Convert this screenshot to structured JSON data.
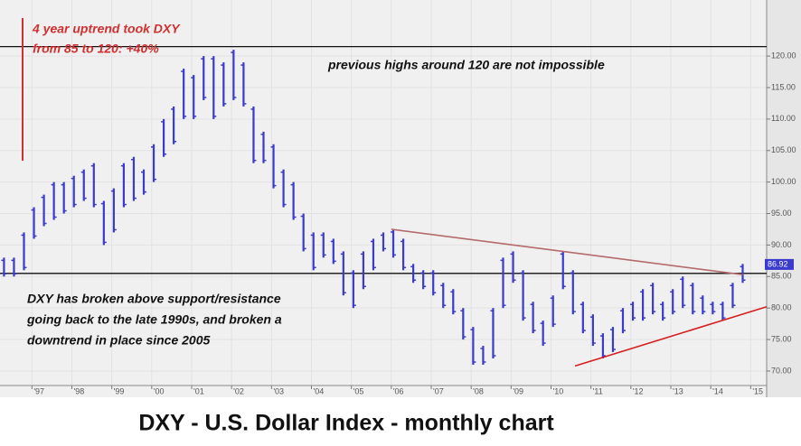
{
  "chart_data": {
    "type": "ohlc",
    "title": "DXY - U.S. Dollar Index - monthly chart",
    "color": "#3a3acc",
    "x": [
      1996.3,
      1996.55,
      1996.8,
      1997.05,
      1997.3,
      1997.55,
      1997.8,
      1998.05,
      1998.3,
      1998.55,
      1998.8,
      1999.05,
      1999.3,
      1999.55,
      1999.8,
      2000.05,
      2000.3,
      2000.55,
      2000.8,
      2001.05,
      2001.3,
      2001.55,
      2001.8,
      2002.05,
      2002.3,
      2002.55,
      2002.8,
      2003.05,
      2003.3,
      2003.55,
      2003.8,
      2004.05,
      2004.3,
      2004.55,
      2004.8,
      2005.05,
      2005.3,
      2005.55,
      2005.8,
      2006.05,
      2006.3,
      2006.55,
      2006.8,
      2007.05,
      2007.3,
      2007.55,
      2007.8,
      2008.05,
      2008.3,
      2008.55,
      2008.8,
      2009.05,
      2009.3,
      2009.55,
      2009.8,
      2010.05,
      2010.3,
      2010.55,
      2010.8,
      2011.05,
      2011.3,
      2011.55,
      2011.8,
      2012.05,
      2012.3,
      2012.55,
      2012.8,
      2013.05,
      2013.3,
      2013.55,
      2013.8,
      2014.05,
      2014.3,
      2014.55,
      2014.8
    ],
    "high": [
      88,
      88,
      92,
      96,
      98,
      100,
      100,
      101,
      102,
      103,
      97,
      99,
      103,
      104,
      102,
      106,
      110,
      112,
      118,
      117,
      120,
      120,
      119,
      121,
      119,
      112,
      108,
      106,
      102,
      100,
      95,
      92,
      92,
      91,
      89,
      86,
      89,
      91,
      92,
      92.5,
      91,
      87,
      86,
      86,
      84,
      83,
      80,
      77,
      74,
      80,
      88,
      89,
      86,
      81,
      78,
      82,
      89,
      86,
      81,
      79,
      76,
      77,
      80,
      81,
      83,
      84,
      81,
      83,
      85,
      84,
      82,
      81,
      81,
      84,
      87
    ],
    "low": [
      85,
      85,
      86,
      91,
      93,
      94,
      95,
      96,
      97,
      96,
      90,
      92,
      96,
      97,
      98,
      100,
      104,
      106,
      110,
      110,
      113,
      110,
      112,
      113,
      112,
      103,
      103,
      99,
      96,
      94,
      89,
      86,
      88,
      87,
      82,
      80,
      83,
      86,
      89,
      88,
      86,
      84,
      83,
      82,
      80,
      79,
      75,
      71,
      71,
      72,
      80,
      84,
      78,
      76,
      74,
      77,
      83,
      79,
      76,
      74,
      72,
      73,
      76,
      78,
      78,
      79,
      78,
      79,
      80,
      79,
      79,
      79,
      78,
      80,
      84
    ],
    "xlim": [
      1996.2,
      2015.4
    ],
    "ylim": [
      67.7,
      128.9
    ],
    "xticks": [
      {
        "value": 1997,
        "label": "'97"
      },
      {
        "value": 1998,
        "label": "'98"
      },
      {
        "value": 1999,
        "label": "'99"
      },
      {
        "value": 2000,
        "label": "'00"
      },
      {
        "value": 2001,
        "label": "'01"
      },
      {
        "value": 2002,
        "label": "'02"
      },
      {
        "value": 2003,
        "label": "'03"
      },
      {
        "value": 2004,
        "label": "'04"
      },
      {
        "value": 2005,
        "label": "'05"
      },
      {
        "value": 2006,
        "label": "'06"
      },
      {
        "value": 2007,
        "label": "'07"
      },
      {
        "value": 2008,
        "label": "'08"
      },
      {
        "value": 2009,
        "label": "'09"
      },
      {
        "value": 2010,
        "label": "'10"
      },
      {
        "value": 2011,
        "label": "'11"
      },
      {
        "value": 2012,
        "label": "'12"
      },
      {
        "value": 2013,
        "label": "'13"
      },
      {
        "value": 2014,
        "label": "'14"
      },
      {
        "value": 2015,
        "label": "'15"
      }
    ],
    "yticks": [
      {
        "value": 70,
        "label": "70.00"
      },
      {
        "value": 75,
        "label": "75.00"
      },
      {
        "value": 80,
        "label": "80.00"
      },
      {
        "value": 85,
        "label": "85.00"
      },
      {
        "value": 90,
        "label": "90.00"
      },
      {
        "value": 95,
        "label": "95.00"
      },
      {
        "value": 100,
        "label": "100.00"
      },
      {
        "value": 105,
        "label": "105.00"
      },
      {
        "value": 110,
        "label": "110.00"
      },
      {
        "value": 115,
        "label": "115.00"
      },
      {
        "value": 120,
        "label": "120.00"
      }
    ],
    "grid": true,
    "hlines": [
      121.5,
      85.5
    ],
    "trendlines": [
      {
        "x": [
          2006.0,
          2014.8
        ],
        "y": [
          92.5,
          85.3
        ],
        "color": "#b46a6a"
      },
      {
        "x": [
          2010.6,
          2015.4
        ],
        "y": [
          70.8,
          80.2
        ],
        "color": "#d42020"
      }
    ],
    "last_price": 86.92,
    "annotations": [
      {
        "lines": [
          "4 year uptrend took DXY",
          "from 85 to 120: +40%"
        ],
        "color": "#d03030"
      },
      {
        "lines": [
          "previous highs around 120 are not impossible"
        ],
        "color": "#111111"
      },
      {
        "lines": [
          "DXY has broken above support/resistance",
          "going back to the late 1990s, and broken a",
          "downtrend in place since 2005"
        ],
        "color": "#111111"
      }
    ]
  }
}
